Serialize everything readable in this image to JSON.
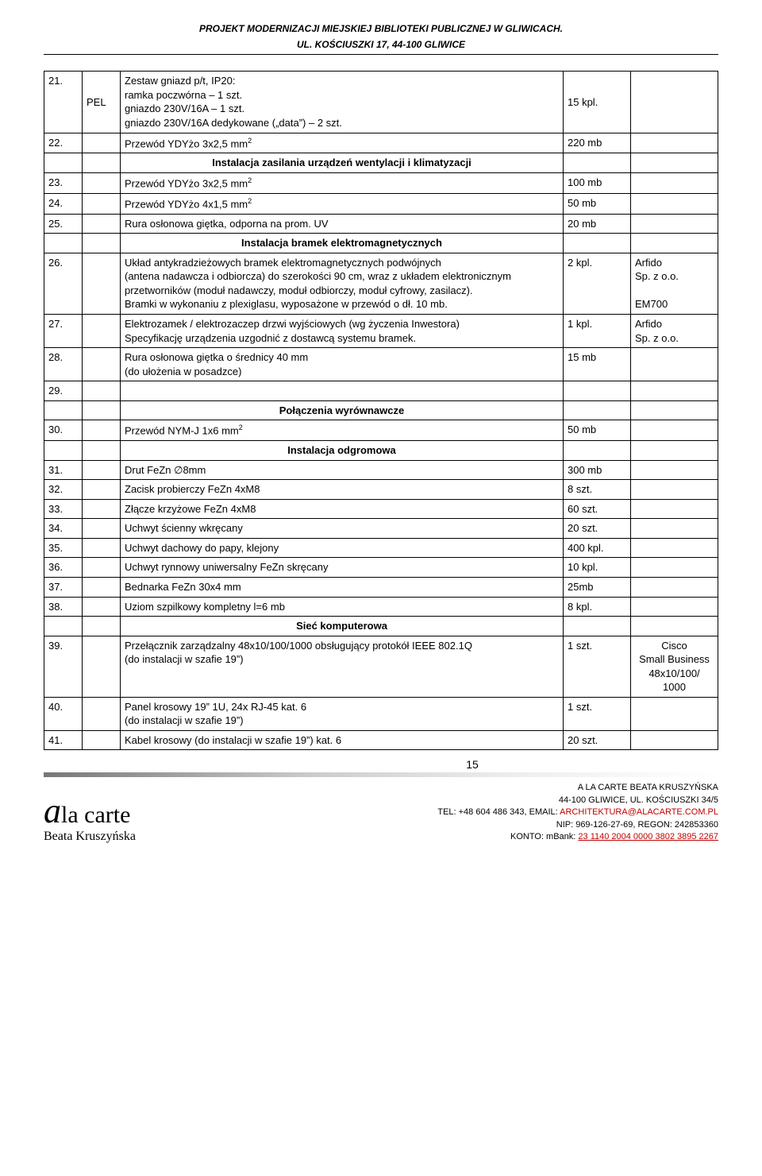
{
  "header": {
    "line1": "PROJEKT MODERNIZACJI MIEJSKIEJ BIBLIOTEKI PUBLICZNEJ W GLIWICACH.",
    "line2": "UL. KOŚCIUSZKI 17, 44-100 GLIWICE"
  },
  "sections": {
    "s1": "Instalacja zasilania urządzeń wentylacji i klimatyzacji",
    "s2": "Instalacja bramek elektromagnetycznych",
    "s3": "Połączenia wyrównawcze",
    "s4": "Instalacja odgromowa",
    "s5": "Sieć komputerowa"
  },
  "rows": {
    "r21": {
      "n": "21.",
      "b": "PEL",
      "c": "Zestaw gniazd p/t, IP20:\nramka poczwórna – 1 szt.\ngniazdo 230V/16A – 1 szt.\ngniazdo 230V/16A dedykowane („data”) – 2 szt.",
      "d": "15 kpl."
    },
    "r22": {
      "n": "22.",
      "c": "Przewód YDYżo 3x2,5 mm",
      "sup": "2",
      "d": "220 mb"
    },
    "r23": {
      "n": "23.",
      "c": "Przewód YDYżo 3x2,5 mm",
      "sup": "2",
      "d": "100 mb"
    },
    "r24": {
      "n": "24.",
      "c": "Przewód YDYżo 4x1,5 mm",
      "sup": "2",
      "d": "50 mb"
    },
    "r25": {
      "n": "25.",
      "c": "Rura osłonowa giętka, odporna na prom. UV",
      "d": "20 mb"
    },
    "r26": {
      "n": "26.",
      "c": "Układ antykradzieżowych bramek elektromagnetycznych podwójnych\n(antena nadawcza i odbiorcza) do szerokości 90 cm, wraz z układem elektronicznym przetworników (moduł nadawczy, moduł odbiorczy, moduł cyfrowy, zasilacz).\nBramki w wykonaniu z plexiglasu, wyposażone w przewód o dł. 10 mb.",
      "d": "2 kpl.",
      "e": "Arfido\nSp. z o.o.\n\nEM700"
    },
    "r27": {
      "n": "27.",
      "c": "Elektrozamek / elektrozaczep drzwi wyjściowych (wg życzenia Inwestora)\nSpecyfikację urządzenia uzgodnić z dostawcą systemu bramek.",
      "d": "1 kpl.",
      "e": "Arfido\nSp. z o.o."
    },
    "r28": {
      "n": "28.",
      "c": "Rura osłonowa giętka o średnicy 40 mm\n(do ułożenia w posadzce)",
      "d": "15 mb"
    },
    "r29": {
      "n": "29."
    },
    "r30": {
      "n": "30.",
      "c": "Przewód NYM-J 1x6 mm",
      "sup": "2",
      "d": "50 mb"
    },
    "r31": {
      "n": "31.",
      "c": "Drut FeZn ∅8mm",
      "d": "300 mb"
    },
    "r32": {
      "n": "32.",
      "c": "Zacisk probierczy FeZn 4xM8",
      "d": "8 szt."
    },
    "r33": {
      "n": "33.",
      "c": "Złącze krzyżowe FeZn 4xM8",
      "d": "60 szt."
    },
    "r34": {
      "n": "34.",
      "c": "Uchwyt ścienny wkręcany",
      "d": "20 szt."
    },
    "r35": {
      "n": "35.",
      "c": "Uchwyt dachowy do papy, klejony",
      "d": "400 kpl."
    },
    "r36": {
      "n": "36.",
      "c": "Uchwyt rynnowy uniwersalny FeZn skręcany",
      "d": "10 kpl."
    },
    "r37": {
      "n": "37.",
      "c": "Bednarka FeZn 30x4 mm",
      "d": "25mb"
    },
    "r38": {
      "n": "38.",
      "c": "Uziom szpilkowy kompletny l=6 mb",
      "d": "8 kpl."
    },
    "r39": {
      "n": "39.",
      "c": "Przełącznik zarządzalny 48x10/100/1000 obsługujący protokół IEEE 802.1Q\n(do instalacji w szafie 19”)",
      "d": "1 szt.",
      "e": "Cisco\nSmall Business\n48x10/100/\n1000"
    },
    "r40": {
      "n": "40.",
      "c": "Panel krosowy 19” 1U, 24x RJ-45 kat. 6\n(do instalacji w szafie 19”)",
      "d": "1 szt."
    },
    "r41": {
      "n": "41.",
      "c": "Kabel krosowy (do instalacji w szafie 19”) kat. 6",
      "d": "20 szt."
    }
  },
  "page_number": "15",
  "footer": {
    "brand": "la carte",
    "brand_prefix": "a",
    "owner": "Beata Kruszyńska",
    "r1": "A LA CARTE BEATA KRUSZYŃSKA",
    "r2": "44-100 GLIWICE, UL. KOŚCIUSZKI 34/5",
    "r3a": "TEL: +48 604 486 343, EMAIL: ",
    "r3b": "ARCHITEKTURA@ALACARTE.COM.PL",
    "r4": "NIP: 969-126-27-69, REGON: 242853360",
    "r5a": "KONTO: mBank: ",
    "r5b": "23 1140 2004 0000 3802 3895 2267"
  }
}
